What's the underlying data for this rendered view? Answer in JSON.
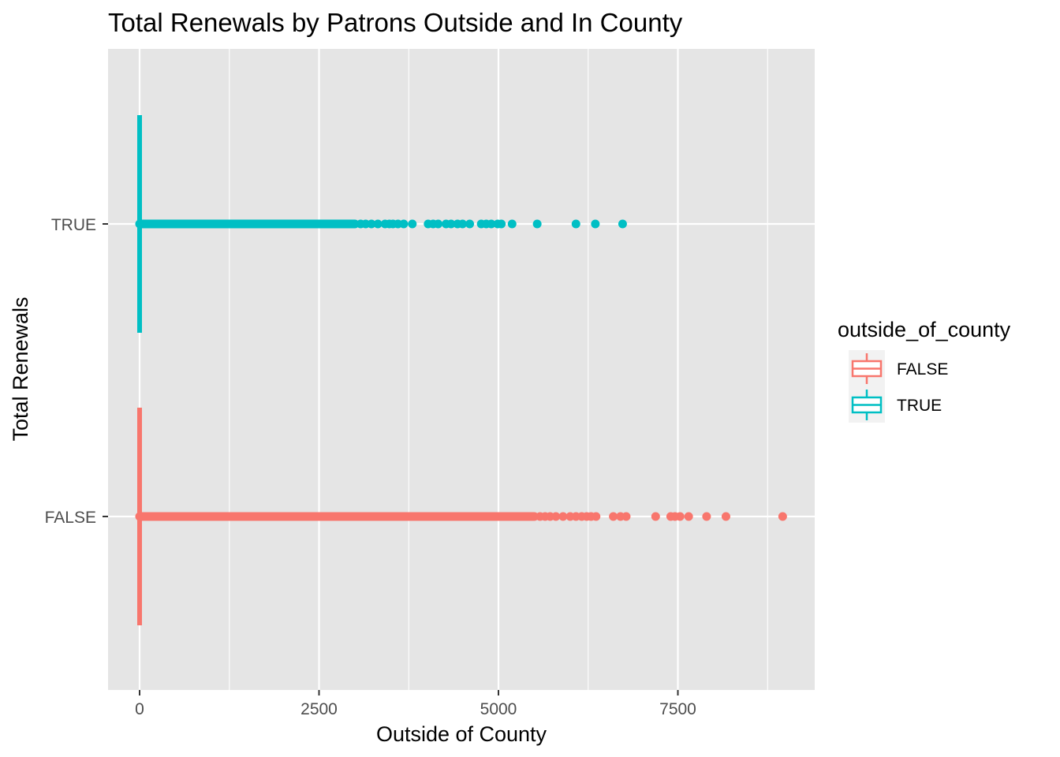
{
  "chart_data": {
    "type": "boxplot",
    "orientation": "horizontal",
    "title": "Total Renewals by Patrons Outside and In County",
    "xlabel": "Outside of County",
    "ylabel": "Total Renewals",
    "xlim": [
      -450,
      9400
    ],
    "x_ticks": [
      0,
      2500,
      5000,
      7500
    ],
    "x_tick_labels": [
      "0",
      "2500",
      "5000",
      "7500"
    ],
    "categories": [
      "TRUE",
      "FALSE"
    ],
    "grid": true,
    "legend": {
      "title": "outside_of_county",
      "position": "right",
      "entries": [
        "FALSE",
        "TRUE"
      ]
    },
    "colors": {
      "FALSE": "#F8766D",
      "TRUE": "#00BFC4",
      "panel": "#E5E5E5",
      "grid": "#FFFFFF"
    },
    "series": [
      {
        "name": "TRUE",
        "box": {
          "min": 0,
          "q1": 0,
          "median": 0,
          "q3": 0,
          "max": 0
        },
        "dense_outlier_range": [
          0,
          3000
        ],
        "outliers": [
          3080,
          3150,
          3230,
          3320,
          3420,
          3480,
          3530,
          3600,
          3680,
          3800,
          4020,
          4090,
          4160,
          4270,
          4340,
          4430,
          4500,
          4600,
          4760,
          4830,
          4900,
          4990,
          5040,
          5190,
          5540,
          6080,
          6350,
          6730
        ]
      },
      {
        "name": "FALSE",
        "box": {
          "min": 0,
          "q1": 0,
          "median": 0,
          "q3": 0,
          "max": 0
        },
        "dense_outlier_range": [
          0,
          5500
        ],
        "outliers": [
          5580,
          5650,
          5720,
          5800,
          5900,
          6000,
          6080,
          6160,
          6230,
          6290,
          6360,
          6600,
          6700,
          6780,
          7190,
          7400,
          7460,
          7530,
          7650,
          7900,
          8170,
          8960
        ]
      }
    ]
  }
}
